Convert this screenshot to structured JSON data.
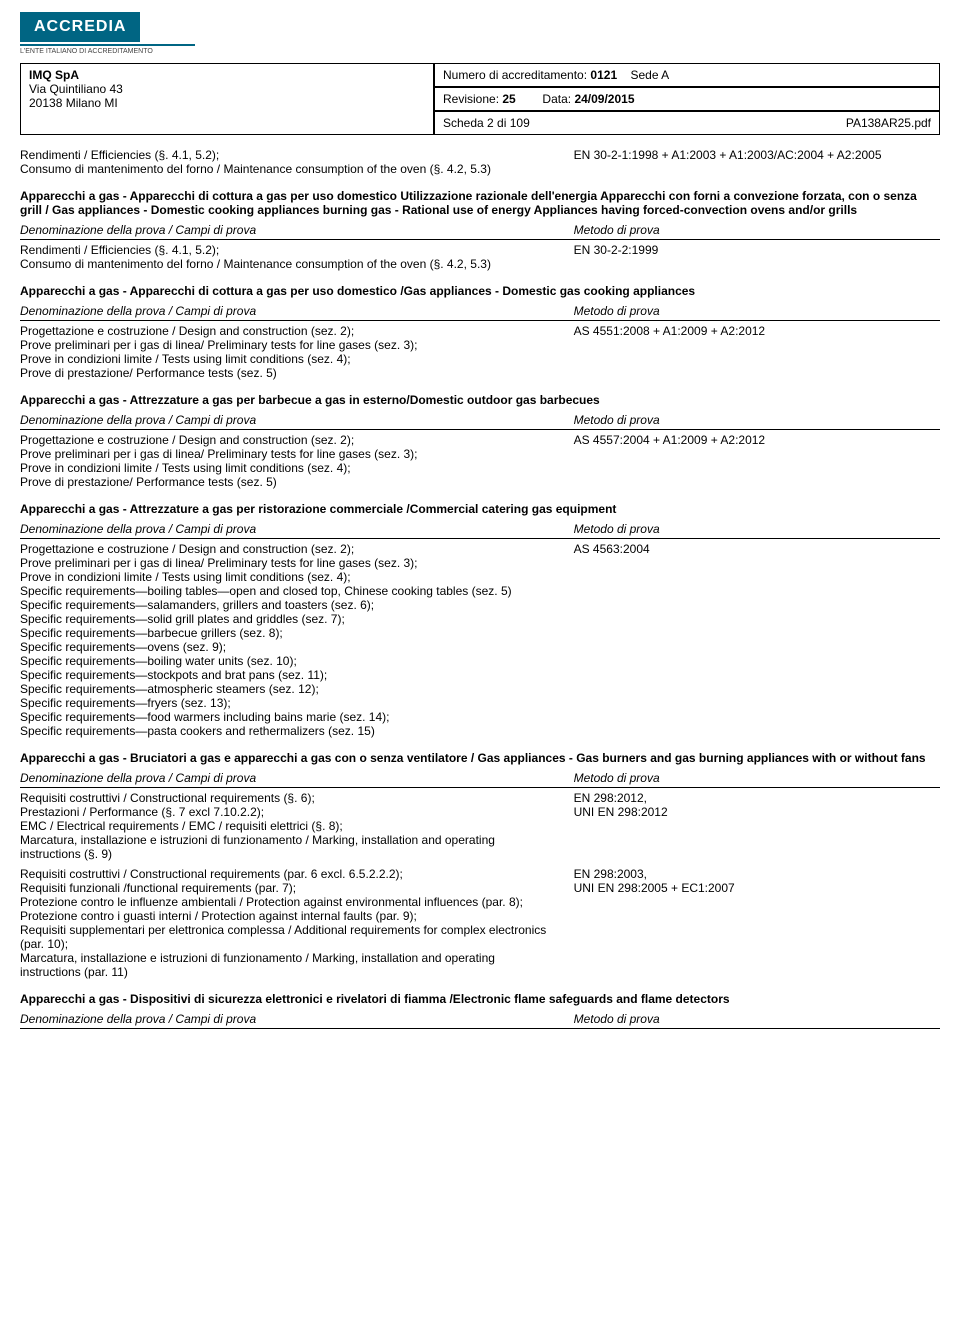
{
  "logo": {
    "brand": "ACCREDIA",
    "subtitle": "L'ENTE ITALIANO DI ACCREDITAMENTO"
  },
  "header": {
    "company": "IMQ SpA",
    "address1": "Via Quintiliano 43",
    "address2": "20138 Milano MI",
    "accred_label": "Numero di accreditamento:",
    "accred_num": "0121",
    "sede": "Sede A",
    "rev_label": "Revisione:",
    "rev_num": "25",
    "date_label": "Data:",
    "date": "24/09/2015",
    "sheet": "Scheda 2 di 109",
    "pdf": "PA138AR25.pdf"
  },
  "col_header": {
    "left": "Denominazione della prova / Campi di prova",
    "right": "Metodo di prova"
  },
  "sections": [
    {
      "title": null,
      "rows": [
        {
          "left": "Rendimenti / Efficiencies (§. 4.1, 5.2);\nConsumo di mantenimento del forno / Maintenance consumption of the oven (§. 4.2, 5.3)",
          "right": "EN 30-2-1:1998 + A1:2003 + A1:2003/AC:2004 + A2:2005"
        }
      ]
    },
    {
      "title": "Apparecchi a gas - Apparecchi di cottura a gas per uso domestico Utilizzazione razionale dell'energia Apparecchi con forni a convezione forzata, con o senza grill / Gas appliances - Domestic cooking appliances burning gas - Rational use of energy Appliances having forced-convection ovens and/or grills",
      "rows": [
        {
          "left": "Rendimenti / Efficiencies (§. 4.1, 5.2);\nConsumo di mantenimento del forno / Maintenance consumption of the oven (§. 4.2, 5.3)",
          "right": "EN 30-2-2:1999"
        }
      ]
    },
    {
      "title": "Apparecchi a gas - Apparecchi di cottura a gas per uso domestico /Gas appliances - Domestic gas cooking appliances",
      "rows": [
        {
          "left": "Progettazione e costruzione / Design and construction (sez. 2);\nProve preliminari per i gas di linea/ Preliminary tests for line gases (sez. 3);\nProve in condizioni limite / Tests using limit conditions (sez. 4);\nProve di prestazione/ Performance tests (sez. 5)",
          "right": "AS 4551:2008 + A1:2009 + A2:2012"
        }
      ]
    },
    {
      "title": "Apparecchi a gas - Attrezzature a gas per barbecue a gas in esterno/Domestic outdoor gas barbecues",
      "rows": [
        {
          "left": "Progettazione e costruzione / Design and construction (sez. 2);\nProve preliminari per i gas di linea/ Preliminary tests for line gases (sez. 3);\nProve in condizioni limite / Tests using limit conditions (sez. 4);\nProve di prestazione/ Performance tests (sez. 5)",
          "right": "AS 4557:2004 + A1:2009 + A2:2012"
        }
      ]
    },
    {
      "title": "Apparecchi a gas - Attrezzature a gas per ristorazione commerciale /Commercial catering gas equipment",
      "rows": [
        {
          "left": "Progettazione e costruzione / Design and construction (sez. 2);\nProve preliminari per i gas di linea/ Preliminary tests for line gases (sez. 3);\nProve in condizioni limite / Tests using limit conditions (sez. 4);\nSpecific requirements—boiling tables—open and closed top, Chinese cooking tables (sez. 5)\nSpecific requirements—salamanders, grillers and toasters (sez. 6);\nSpecific requirements—solid grill plates and griddles (sez. 7);\nSpecific requirements—barbecue grillers (sez. 8);\nSpecific requirements—ovens (sez. 9);\nSpecific requirements—boiling water units (sez. 10);\nSpecific requirements—stockpots and brat pans (sez. 11);\nSpecific requirements—atmospheric steamers (sez. 12);\nSpecific requirements—fryers (sez. 13);\nSpecific requirements—food warmers including bains marie (sez. 14);\nSpecific requirements—pasta cookers and rethermalizers (sez. 15)",
          "right": "AS 4563:2004"
        }
      ]
    },
    {
      "title": "Apparecchi a gas - Bruciatori a gas e apparecchi a gas con o senza ventilatore / Gas appliances - Gas burners and gas burning appliances with or without fans",
      "rows": [
        {
          "left": "Requisiti costruttivi / Constructional requirements (§. 6);\nPrestazioni / Performance (§. 7 excl 7.10.2.2);\nEMC / Electrical requirements / EMC / requisiti elettrici (§. 8);\nMarcatura, installazione e istruzioni di funzionamento / Marking, installation and operating instructions (§. 9)",
          "right": "EN 298:2012,\nUNI EN 298:2012"
        },
        {
          "left": "Requisiti costruttivi / Constructional requirements (par. 6 excl. 6.5.2.2.2);\nRequisiti funzionali /functional requirements (par. 7);\nProtezione contro le influenze ambientali / Protection against environmental influences (par. 8);\nProtezione contro i guasti interni / Protection against internal faults (par. 9);\nRequisiti supplementari per elettronica complessa / Additional requirements for complex electronics (par. 10);\nMarcatura, installazione e istruzioni di funzionamento / Marking, installation and operating instructions (par. 11)",
          "right": "EN 298:2003,\nUNI EN 298:2005 + EC1:2007"
        }
      ]
    },
    {
      "title": "Apparecchi a gas - Dispositivi di sicurezza elettronici e rivelatori di fiamma /Electronic flame safeguards and flame detectors",
      "rows": []
    }
  ]
}
